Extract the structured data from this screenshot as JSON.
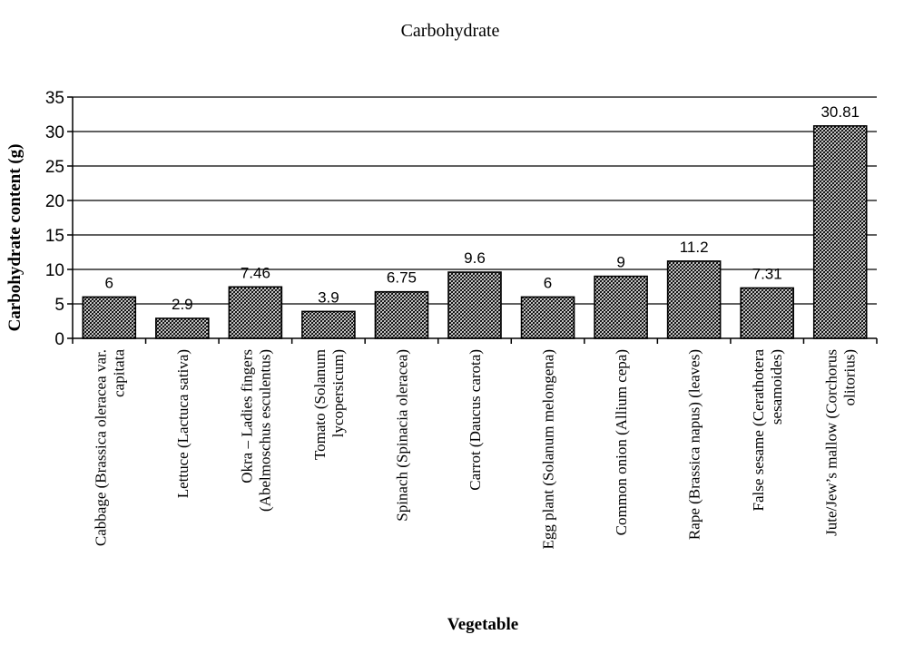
{
  "chart_data": {
    "type": "bar",
    "title": "Carbohydrate",
    "xlabel": "Vegetable",
    "ylabel": "Carbohydrate content (g)",
    "ylim": [
      0,
      35
    ],
    "yticks": [
      0,
      5,
      10,
      15,
      20,
      25,
      30,
      35
    ],
    "grid": true,
    "categories": [
      [
        "Cabbage (Brassica oleracea var.",
        "capitata"
      ],
      [
        "Lettuce (Lactuca sativa)"
      ],
      [
        "Okra – Ladies fingers",
        "(Abelmoschus esculentus)"
      ],
      [
        "Tomato (Solanum",
        "lycopersicum)"
      ],
      [
        "Spinach (Spinacia oleracea)"
      ],
      [
        "Carrot (Daucus carota)"
      ],
      [
        "Egg plant (Solanum melongena)"
      ],
      [
        "Common onion (Allium cepa)"
      ],
      [
        "Rape (Brassica napus) (leaves)"
      ],
      [
        "False sesame (Cerathotera",
        "sesamoides)"
      ],
      [
        "Jute/Jew’s mallow (Corchorus",
        "olitorius)"
      ]
    ],
    "values": [
      6,
      2.9,
      7.46,
      3.9,
      6.75,
      9.6,
      6,
      9,
      11.2,
      7.31,
      30.81
    ],
    "data_labels": [
      "6",
      "2.9",
      "7.46",
      "3.9",
      "6.75",
      "9.6",
      "6",
      "9",
      "11.2",
      "7.31",
      "30.81"
    ],
    "bar_pattern": "crosshatch"
  }
}
